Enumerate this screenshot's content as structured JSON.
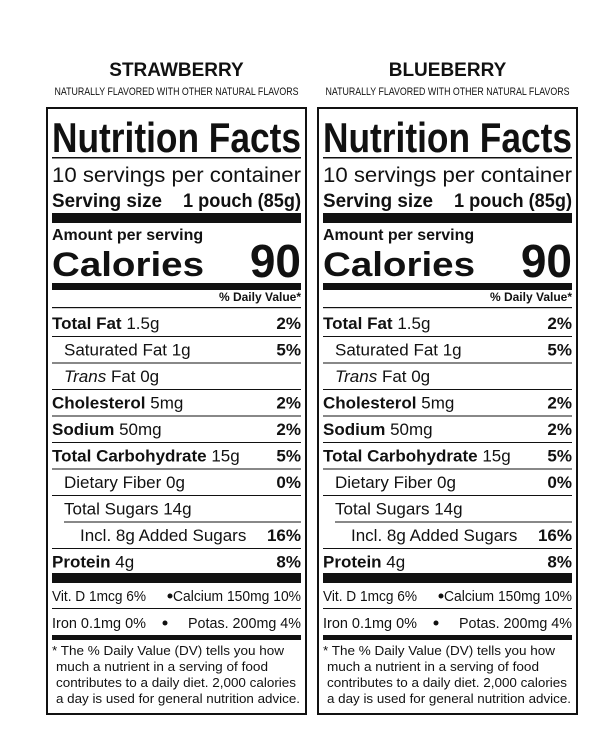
{
  "panels": [
    {
      "flavor": "STRAWBERRY",
      "subtitle": "NATURALLY FLAVORED WITH OTHER NATURAL FLAVORS",
      "title": "Nutrition Facts",
      "servings": "10 servings per container",
      "serving_size_label": "Serving size",
      "serving_size": "1 pouch (85g)",
      "amount_per_serving": "Amount per serving",
      "calories_label": "Calories",
      "calories": "90",
      "dv_header": "% Daily Value*",
      "rows": [
        {
          "name": "Total Fat",
          "amount": "1.5g",
          "dv": "2%",
          "bold": true,
          "indent": 0
        },
        {
          "name": "Saturated Fat 1g",
          "dv": "5%",
          "bold": false,
          "indent": 1
        },
        {
          "italic": "Trans",
          "name": "Fat 0g",
          "bold": false,
          "indent": 1
        },
        {
          "name": "Cholesterol",
          "amount": "5mg",
          "dv": "2%",
          "bold": true,
          "indent": 0
        },
        {
          "name": "Sodium",
          "amount": "50mg",
          "dv": "2%",
          "bold": true,
          "indent": 0
        },
        {
          "name": "Total Carbohydrate",
          "amount": "15g",
          "dv": "5%",
          "bold": true,
          "indent": 0
        },
        {
          "name": "Dietary Fiber 0g",
          "dv": "0%",
          "bold": false,
          "indent": 1
        },
        {
          "name": "Total Sugars 14g",
          "bold": false,
          "indent": 1
        },
        {
          "name": "Incl. 8g Added Sugars",
          "dv": "16%",
          "bold": false,
          "indent": 2
        },
        {
          "name": "Protein",
          "amount": "4g",
          "dv": "8%",
          "bold": true,
          "indent": 0
        }
      ],
      "micros": [
        [
          "Vit. D 1mcg 6%",
          "Calcium 150mg 10%"
        ],
        [
          "Iron 0.1mg 0%",
          "Potas. 200mg 4%"
        ]
      ],
      "footnote": [
        "* The % Daily Value (DV) tells you how",
        "much a nutrient in a serving of food",
        "contributes to a daily diet. 2,000 calories",
        "a day is used for general nutrition advice."
      ]
    },
    {
      "flavor": "BLUEBERRY",
      "subtitle": "NATURALLY FLAVORED WITH OTHER NATURAL FLAVORS",
      "title": "Nutrition Facts",
      "servings": "10 servings per container",
      "serving_size_label": "Serving size",
      "serving_size": "1 pouch (85g)",
      "amount_per_serving": "Amount per serving",
      "calories_label": "Calories",
      "calories": "90",
      "dv_header": "% Daily Value*",
      "rows": [
        {
          "name": "Total Fat",
          "amount": "1.5g",
          "dv": "2%",
          "bold": true,
          "indent": 0
        },
        {
          "name": "Saturated Fat 1g",
          "dv": "5%",
          "bold": false,
          "indent": 1
        },
        {
          "italic": "Trans",
          "name": "Fat 0g",
          "bold": false,
          "indent": 1
        },
        {
          "name": "Cholesterol",
          "amount": "5mg",
          "dv": "2%",
          "bold": true,
          "indent": 0
        },
        {
          "name": "Sodium",
          "amount": "50mg",
          "dv": "2%",
          "bold": true,
          "indent": 0
        },
        {
          "name": "Total Carbohydrate",
          "amount": "15g",
          "dv": "5%",
          "bold": true,
          "indent": 0
        },
        {
          "name": "Dietary Fiber 0g",
          "dv": "0%",
          "bold": false,
          "indent": 1
        },
        {
          "name": "Total Sugars 14g",
          "bold": false,
          "indent": 1
        },
        {
          "name": "Incl. 8g Added Sugars",
          "dv": "16%",
          "bold": false,
          "indent": 2
        },
        {
          "name": "Protein",
          "amount": "4g",
          "dv": "8%",
          "bold": true,
          "indent": 0
        }
      ],
      "micros": [
        [
          "Vit. D 1mcg 6%",
          "Calcium 150mg 10%"
        ],
        [
          "Iron 0.1mg 0%",
          "Potas. 200mg 4%"
        ]
      ],
      "footnote": [
        "* The % Daily Value (DV) tells you how",
        "much a nutrient in a serving of food",
        "contributes to a daily diet. 2,000 calories",
        "a day is used for general nutrition advice."
      ]
    }
  ]
}
